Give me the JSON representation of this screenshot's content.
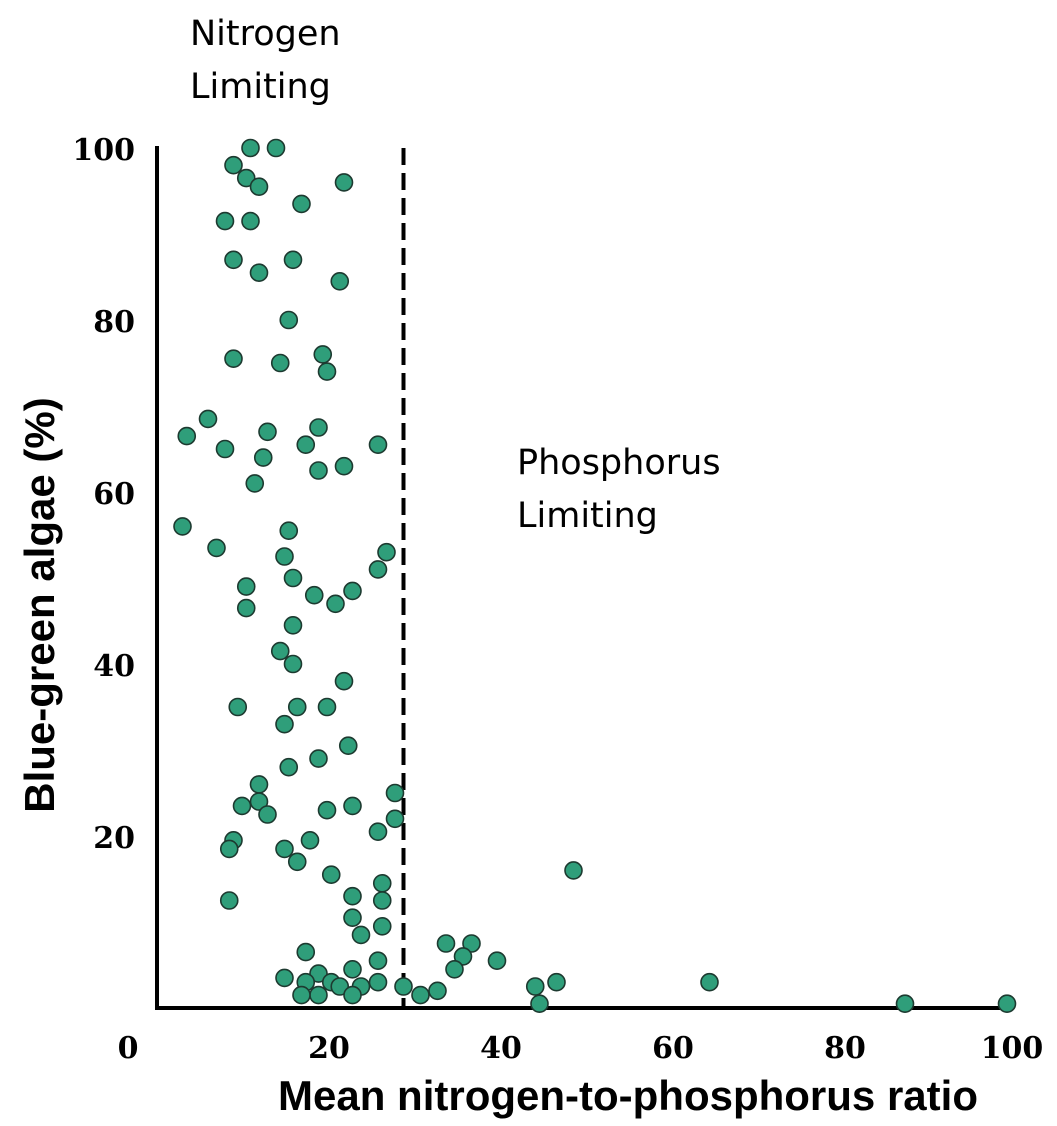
{
  "chart_data": {
    "type": "scatter",
    "xlabel": "Mean nitrogen-to-phosphorus ratio",
    "ylabel": "Blue-green algae (%)",
    "xlim": [
      0,
      100
    ],
    "ylim": [
      0,
      100
    ],
    "x_ticks": [
      "0",
      "20",
      "40",
      "60",
      "80",
      "100"
    ],
    "y_ticks": [
      "20",
      "40",
      "60",
      "80",
      "100"
    ],
    "grid": false,
    "legend": "none",
    "marker_color": "#2f9e7a",
    "threshold": {
      "x": 29,
      "style": "dashed"
    },
    "annotations": {
      "left_region": [
        "Nitrogen",
        "Limiting"
      ],
      "right_region": [
        "Phosphorus",
        "Limiting"
      ]
    },
    "points": [
      {
        "x": 11,
        "y": 100
      },
      {
        "x": 14,
        "y": 100
      },
      {
        "x": 9,
        "y": 98
      },
      {
        "x": 10.5,
        "y": 96.5
      },
      {
        "x": 12,
        "y": 95.5
      },
      {
        "x": 22,
        "y": 96
      },
      {
        "x": 17,
        "y": 93.5
      },
      {
        "x": 8,
        "y": 91.5
      },
      {
        "x": 11,
        "y": 91.5
      },
      {
        "x": 9,
        "y": 87
      },
      {
        "x": 16,
        "y": 87
      },
      {
        "x": 12,
        "y": 85.5
      },
      {
        "x": 21.5,
        "y": 84.5
      },
      {
        "x": 15.5,
        "y": 80
      },
      {
        "x": 9,
        "y": 75.5
      },
      {
        "x": 14.5,
        "y": 75
      },
      {
        "x": 19.5,
        "y": 76
      },
      {
        "x": 20,
        "y": 74
      },
      {
        "x": 6,
        "y": 68.5
      },
      {
        "x": 3.5,
        "y": 66.5
      },
      {
        "x": 13,
        "y": 67
      },
      {
        "x": 19,
        "y": 67.5
      },
      {
        "x": 8,
        "y": 65
      },
      {
        "x": 17.5,
        "y": 65.5
      },
      {
        "x": 26,
        "y": 65.5
      },
      {
        "x": 12.5,
        "y": 64
      },
      {
        "x": 19,
        "y": 62.5
      },
      {
        "x": 22,
        "y": 63
      },
      {
        "x": 11.5,
        "y": 61
      },
      {
        "x": 3,
        "y": 56
      },
      {
        "x": 15.5,
        "y": 55.5
      },
      {
        "x": 7,
        "y": 53.5
      },
      {
        "x": 15,
        "y": 52.5
      },
      {
        "x": 27,
        "y": 53
      },
      {
        "x": 26,
        "y": 51
      },
      {
        "x": 16,
        "y": 50
      },
      {
        "x": 10.5,
        "y": 49
      },
      {
        "x": 18.5,
        "y": 48
      },
      {
        "x": 23,
        "y": 48.5
      },
      {
        "x": 10.5,
        "y": 46.5
      },
      {
        "x": 21,
        "y": 47
      },
      {
        "x": 16,
        "y": 44.5
      },
      {
        "x": 14.5,
        "y": 41.5
      },
      {
        "x": 16,
        "y": 40
      },
      {
        "x": 22,
        "y": 38
      },
      {
        "x": 9.5,
        "y": 35
      },
      {
        "x": 16.5,
        "y": 35
      },
      {
        "x": 20,
        "y": 35
      },
      {
        "x": 15,
        "y": 33
      },
      {
        "x": 22.5,
        "y": 30.5
      },
      {
        "x": 19,
        "y": 29
      },
      {
        "x": 15.5,
        "y": 28
      },
      {
        "x": 12,
        "y": 26
      },
      {
        "x": 28,
        "y": 25
      },
      {
        "x": 10,
        "y": 23.5
      },
      {
        "x": 12,
        "y": 24
      },
      {
        "x": 13,
        "y": 22.5
      },
      {
        "x": 20,
        "y": 23
      },
      {
        "x": 23,
        "y": 23.5
      },
      {
        "x": 28,
        "y": 22
      },
      {
        "x": 26,
        "y": 20.5
      },
      {
        "x": 9,
        "y": 19.5
      },
      {
        "x": 18,
        "y": 19.5
      },
      {
        "x": 8.5,
        "y": 18.5
      },
      {
        "x": 15,
        "y": 18.5
      },
      {
        "x": 16.5,
        "y": 17
      },
      {
        "x": 20.5,
        "y": 15.5
      },
      {
        "x": 49,
        "y": 16
      },
      {
        "x": 26.5,
        "y": 14.5
      },
      {
        "x": 23,
        "y": 13
      },
      {
        "x": 8.5,
        "y": 12.5
      },
      {
        "x": 26.5,
        "y": 12.5
      },
      {
        "x": 23,
        "y": 10.5
      },
      {
        "x": 26.5,
        "y": 9.5
      },
      {
        "x": 24,
        "y": 8.5
      },
      {
        "x": 34,
        "y": 7.5
      },
      {
        "x": 37,
        "y": 7.5
      },
      {
        "x": 17.5,
        "y": 6.5
      },
      {
        "x": 36,
        "y": 6
      },
      {
        "x": 40,
        "y": 5.5
      },
      {
        "x": 26,
        "y": 5.5
      },
      {
        "x": 35,
        "y": 4.5
      },
      {
        "x": 23,
        "y": 4.5
      },
      {
        "x": 19,
        "y": 4
      },
      {
        "x": 15,
        "y": 3.5
      },
      {
        "x": 20.5,
        "y": 3
      },
      {
        "x": 17.5,
        "y": 3
      },
      {
        "x": 65,
        "y": 3
      },
      {
        "x": 29,
        "y": 2.5
      },
      {
        "x": 26,
        "y": 3
      },
      {
        "x": 47,
        "y": 3
      },
      {
        "x": 44.5,
        "y": 2.5
      },
      {
        "x": 21.5,
        "y": 2.5
      },
      {
        "x": 24,
        "y": 2.5
      },
      {
        "x": 33,
        "y": 2
      },
      {
        "x": 31,
        "y": 1.5
      },
      {
        "x": 19,
        "y": 1.5
      },
      {
        "x": 23,
        "y": 1.5
      },
      {
        "x": 17,
        "y": 1.5
      },
      {
        "x": 45,
        "y": 0.5
      },
      {
        "x": 88,
        "y": 0.5
      },
      {
        "x": 100,
        "y": 0.5
      }
    ]
  }
}
